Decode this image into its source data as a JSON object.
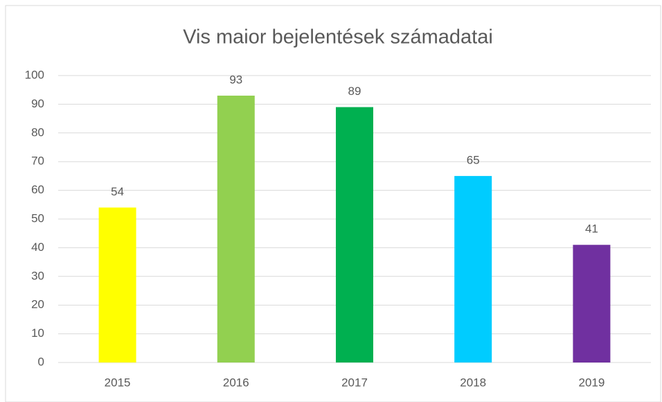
{
  "chart_data": {
    "type": "bar",
    "title": "Vis maior bejelentések számadatai",
    "categories": [
      "2015",
      "2016",
      "2017",
      "2018",
      "2019"
    ],
    "values": [
      54,
      93,
      89,
      65,
      41
    ],
    "colors": [
      "#ffff00",
      "#92d050",
      "#00b050",
      "#00ccff",
      "#7030a0"
    ],
    "ylim": [
      0,
      100
    ],
    "yticks": [
      0,
      10,
      20,
      30,
      40,
      50,
      60,
      70,
      80,
      90,
      100
    ],
    "grid": true
  }
}
